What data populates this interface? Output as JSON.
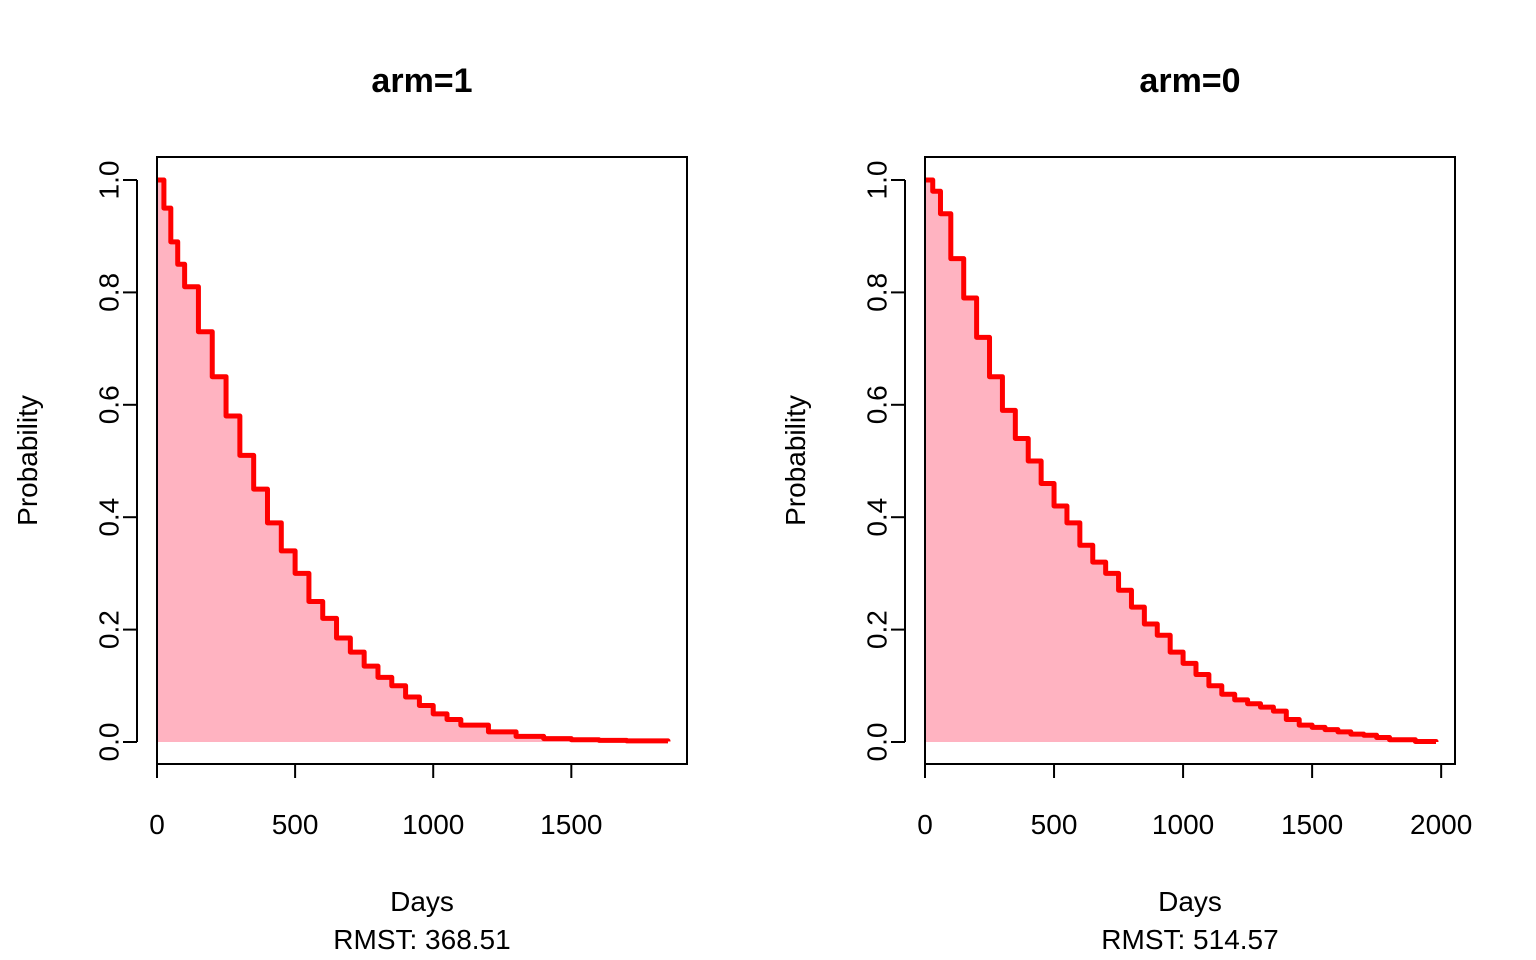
{
  "chart_data": [
    {
      "type": "area",
      "title": "arm=1",
      "xlabel": "Days",
      "subtitle": "RMST: 368.51",
      "ylabel": "Probability",
      "xlim": [
        0,
        1850
      ],
      "ylim": [
        0,
        1
      ],
      "xticks": [
        0,
        500,
        1000,
        1500
      ],
      "yticks": [
        0.0,
        0.2,
        0.4,
        0.6,
        0.8,
        1.0
      ],
      "ytick_labels": [
        "0.0",
        "0.2",
        "0.4",
        "0.6",
        "0.8",
        "1.0"
      ],
      "line_color": "#ff0000",
      "fill_color": "#ffb3c1",
      "series": [
        {
          "x": [
            0,
            25,
            50,
            75,
            100,
            150,
            200,
            250,
            300,
            350,
            400,
            450,
            500,
            550,
            600,
            650,
            700,
            750,
            800,
            850,
            900,
            950,
            1000,
            1050,
            1100,
            1200,
            1300,
            1400,
            1500,
            1600,
            1700,
            1850
          ],
          "y": [
            1.0,
            0.95,
            0.89,
            0.85,
            0.81,
            0.73,
            0.65,
            0.58,
            0.51,
            0.45,
            0.39,
            0.34,
            0.3,
            0.25,
            0.22,
            0.185,
            0.16,
            0.135,
            0.115,
            0.1,
            0.08,
            0.065,
            0.05,
            0.04,
            0.03,
            0.018,
            0.01,
            0.006,
            0.004,
            0.003,
            0.002,
            0.001
          ]
        }
      ]
    },
    {
      "type": "area",
      "title": "arm=0",
      "xlabel": "Days",
      "subtitle": "RMST: 514.57",
      "ylabel": "Probability",
      "xlim": [
        0,
        2050
      ],
      "ylim": [
        0,
        1
      ],
      "xticks": [
        0,
        500,
        1000,
        1500,
        2000
      ],
      "yticks": [
        0.0,
        0.2,
        0.4,
        0.6,
        0.8,
        1.0
      ],
      "ytick_labels": [
        "0.0",
        "0.2",
        "0.4",
        "0.6",
        "0.8",
        "1.0"
      ],
      "line_color": "#ff0000",
      "fill_color": "#ffb3c1",
      "series": [
        {
          "x": [
            0,
            30,
            60,
            100,
            150,
            200,
            250,
            300,
            350,
            400,
            450,
            500,
            550,
            600,
            650,
            700,
            750,
            800,
            850,
            900,
            950,
            1000,
            1050,
            1100,
            1150,
            1200,
            1250,
            1300,
            1350,
            1400,
            1450,
            1500,
            1550,
            1600,
            1650,
            1700,
            1750,
            1800,
            1900,
            1980
          ],
          "y": [
            1.0,
            0.98,
            0.94,
            0.86,
            0.79,
            0.72,
            0.65,
            0.59,
            0.54,
            0.5,
            0.46,
            0.42,
            0.39,
            0.35,
            0.32,
            0.3,
            0.27,
            0.24,
            0.21,
            0.19,
            0.16,
            0.14,
            0.12,
            0.1,
            0.085,
            0.075,
            0.068,
            0.062,
            0.055,
            0.04,
            0.03,
            0.026,
            0.022,
            0.018,
            0.014,
            0.012,
            0.008,
            0.004,
            0.001,
            0.0
          ]
        }
      ]
    }
  ]
}
